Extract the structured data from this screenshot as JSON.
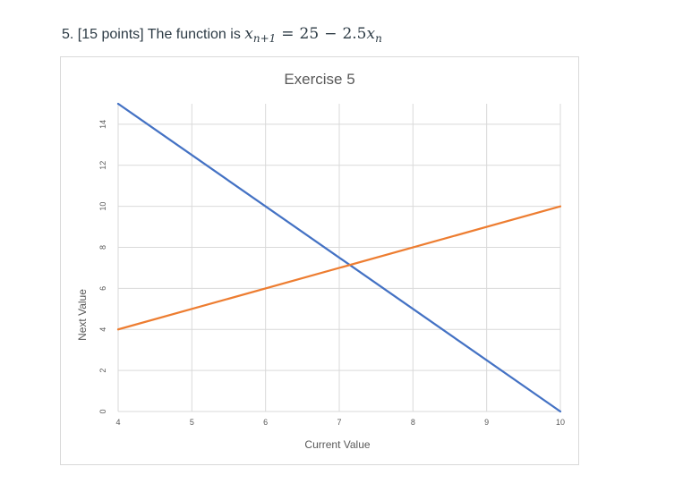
{
  "question": {
    "prefix": "5. [15 points] The function is",
    "formula": {
      "lhs_var": "x",
      "lhs_sub": "n+1",
      "equals": "=",
      "constant": "25",
      "minus": "−",
      "coef": "2.5",
      "rhs_var": "x",
      "rhs_sub": "n"
    }
  },
  "chart_data": {
    "type": "line",
    "title": "Exercise 5",
    "xlabel": "Current Value",
    "ylabel": "Next Value",
    "xlim": [
      4,
      10
    ],
    "ylim": [
      0,
      15
    ],
    "x_ticks": [
      4,
      5,
      6,
      7,
      8,
      9,
      10
    ],
    "y_ticks": [
      0,
      2,
      4,
      6,
      8,
      10,
      12,
      14
    ],
    "grid": true,
    "legend": "none",
    "series": [
      {
        "x": [
          4,
          10
        ],
        "y": [
          15,
          0
        ],
        "color": "#4472c4"
      },
      {
        "x": [
          4,
          10
        ],
        "y": [
          4,
          10
        ],
        "color": "#ed7d31"
      }
    ]
  },
  "colors": {
    "gridline": "#d9d9d9",
    "text": "#595959"
  }
}
